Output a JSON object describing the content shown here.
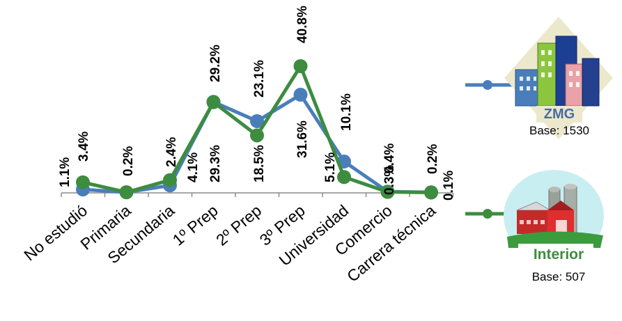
{
  "chart_data": {
    "type": "line",
    "categories": [
      "No estudió",
      "Primaria",
      "Secundaria",
      "1º Prep",
      "2º Prep",
      "3º Prep",
      "Universidad",
      "Comercio",
      "Carrera técnica"
    ],
    "series": [
      {
        "name": "ZMG",
        "color": "#4a7ebb",
        "values": [
          1.1,
          0.2,
          2.4,
          29.3,
          23.1,
          31.6,
          10.1,
          0.4,
          0.2
        ],
        "labels": [
          "1.1%",
          "0.2%",
          "2.4%",
          "29.3%",
          "23.1%",
          "31.6%",
          "10.1%",
          "0.4%",
          "0.2%"
        ]
      },
      {
        "name": "Interior",
        "color": "#3d8c40",
        "values": [
          3.4,
          0.2,
          4.1,
          29.2,
          18.5,
          40.8,
          5.1,
          0.3,
          0.1
        ],
        "labels": [
          "3.4%",
          "",
          "4.1%",
          "29.2%",
          "18.5%",
          "40.8%",
          "5.1%",
          "0.3%",
          "0.1%"
        ]
      }
    ],
    "ylim": [
      0,
      45
    ],
    "grid": false
  },
  "legend": {
    "zmg": {
      "name": "ZMG",
      "base": "Base: 1530"
    },
    "interior": {
      "name": "Interior",
      "base": "Base: 507"
    }
  },
  "icons": {
    "zmg": "city-buildings-icon",
    "interior": "farm-barn-icon"
  }
}
